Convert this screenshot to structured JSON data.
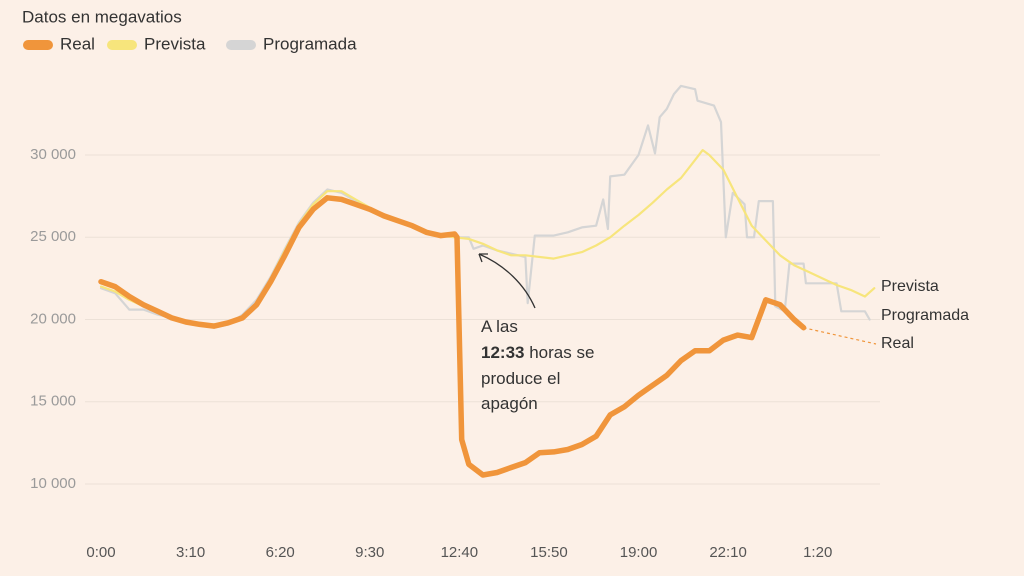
{
  "chart_data": {
    "type": "line",
    "subtitle": "Datos en megavatios",
    "xlim": [
      0,
      1650
    ],
    "xticks": [
      {
        "value": 0,
        "label": "0:00"
      },
      {
        "value": 190,
        "label": "3:10"
      },
      {
        "value": 380,
        "label": "6:20"
      },
      {
        "value": 570,
        "label": "9:30"
      },
      {
        "value": 760,
        "label": "12:40"
      },
      {
        "value": 950,
        "label": "15:50"
      },
      {
        "value": 1140,
        "label": "19:00"
      },
      {
        "value": 1330,
        "label": "22:10"
      },
      {
        "value": 1520,
        "label": "1:20"
      }
    ],
    "ylim": [
      8000,
      35000
    ],
    "yticks": [
      {
        "value": 10000,
        "label": "10 000"
      },
      {
        "value": 15000,
        "label": "15 000"
      },
      {
        "value": 20000,
        "label": "20 000"
      },
      {
        "value": 25000,
        "label": "25 000"
      },
      {
        "value": 30000,
        "label": "30 000"
      }
    ],
    "grid": true,
    "annotation": [
      "A las",
      "12:33",
      "horas se",
      "produce el",
      "apagón"
    ],
    "series": [
      {
        "name": "Real",
        "color": "#f0953b",
        "x": [
          0,
          30,
          60,
          90,
          120,
          150,
          180,
          210,
          240,
          270,
          300,
          330,
          360,
          390,
          420,
          450,
          480,
          510,
          540,
          570,
          600,
          630,
          660,
          690,
          720,
          750,
          755,
          765,
          780,
          810,
          840,
          870,
          900,
          930,
          960,
          990,
          1020,
          1050,
          1080,
          1110,
          1140,
          1170,
          1200,
          1230,
          1260,
          1290,
          1320,
          1350,
          1380,
          1410,
          1440,
          1470,
          1490
        ],
        "values": [
          22300,
          22000,
          21400,
          20900,
          20500,
          20100,
          19850,
          19700,
          19600,
          19800,
          20100,
          20900,
          22300,
          23900,
          25600,
          26700,
          27400,
          27300,
          27000,
          26700,
          26300,
          26000,
          25700,
          25300,
          25100,
          25200,
          25000,
          12700,
          11200,
          10550,
          10700,
          11000,
          11300,
          11900,
          11950,
          12100,
          12400,
          12900,
          14200,
          14700,
          15400,
          16000,
          16600,
          17500,
          18100,
          18100,
          18750,
          19050,
          18900,
          21200,
          20900,
          20000,
          19500
        ]
      },
      {
        "name": "Prevista",
        "color": "#f7e57c",
        "x": [
          0,
          30,
          60,
          90,
          120,
          150,
          180,
          210,
          240,
          270,
          300,
          330,
          360,
          390,
          420,
          450,
          480,
          510,
          540,
          570,
          600,
          630,
          660,
          690,
          720,
          750,
          780,
          810,
          840,
          870,
          900,
          960,
          1020,
          1050,
          1080,
          1110,
          1140,
          1170,
          1200,
          1230,
          1260,
          1276,
          1290,
          1320,
          1350,
          1380,
          1410,
          1440,
          1470,
          1500,
          1530,
          1560,
          1590,
          1620,
          1640
        ],
        "values": [
          22000,
          21700,
          21200,
          20800,
          20400,
          20100,
          19900,
          19700,
          19700,
          19800,
          20200,
          21000,
          22500,
          24200,
          25800,
          27000,
          27800,
          27800,
          27300,
          26800,
          26300,
          26000,
          25600,
          25300,
          25100,
          25000,
          24900,
          24600,
          24200,
          23900,
          23900,
          23700,
          24100,
          24500,
          25000,
          25700,
          26350,
          27100,
          27900,
          28600,
          29700,
          30300,
          30000,
          29100,
          27400,
          25700,
          24800,
          23900,
          23300,
          22900,
          22500,
          22100,
          21800,
          21400,
          21900
        ]
      },
      {
        "name": "Programada",
        "color": "#d5d5d5",
        "x": [
          0,
          30,
          60,
          90,
          120,
          150,
          180,
          210,
          240,
          270,
          300,
          330,
          360,
          390,
          420,
          450,
          480,
          510,
          540,
          570,
          600,
          630,
          660,
          690,
          720,
          750,
          780,
          790,
          810,
          840,
          870,
          900,
          905,
          920,
          960,
          990,
          1020,
          1050,
          1065,
          1075,
          1080,
          1110,
          1140,
          1160,
          1175,
          1185,
          1200,
          1215,
          1230,
          1260,
          1265,
          1300,
          1315,
          1325,
          1340,
          1365,
          1370,
          1385,
          1395,
          1425,
          1430,
          1450,
          1460,
          1490,
          1495,
          1560,
          1570,
          1620,
          1630
        ],
        "values": [
          21900,
          21600,
          20600,
          20600,
          20300,
          20100,
          19800,
          19800,
          19500,
          19700,
          20300,
          21200,
          22600,
          24300,
          25900,
          27100,
          27900,
          27700,
          27200,
          26700,
          26200,
          26000,
          25700,
          25300,
          25100,
          25000,
          25000,
          24300,
          24500,
          24200,
          24000,
          23800,
          21000,
          25100,
          25100,
          25300,
          25600,
          25700,
          27300,
          25500,
          28700,
          28800,
          30000,
          31800,
          30100,
          32300,
          32800,
          33700,
          34200,
          34000,
          33300,
          33000,
          32000,
          25000,
          27700,
          27000,
          25000,
          25000,
          27200,
          27200,
          20800,
          20500,
          23400,
          23400,
          22200,
          22200,
          20500,
          20500,
          20000
        ]
      }
    ]
  }
}
